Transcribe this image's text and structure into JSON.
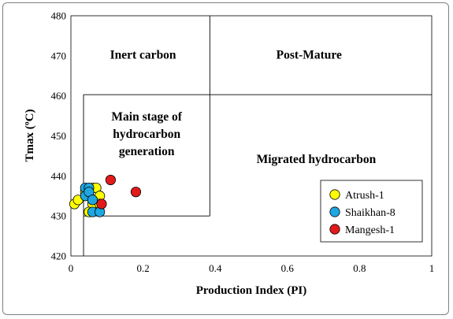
{
  "chart_data": {
    "type": "scatter",
    "title": "",
    "xlabel": "Production Index (PI)",
    "ylabel": "Tmax (ºC)",
    "xlim": [
      0,
      1
    ],
    "ylim": [
      420,
      480
    ],
    "x_ticks": [
      "0",
      "0.2",
      "0.4",
      "0.6",
      "0.8",
      "1"
    ],
    "y_ticks": [
      "420",
      "430",
      "440",
      "450",
      "460",
      "470",
      "480"
    ],
    "grid": false,
    "legend_position": "bottom-right",
    "regions": [
      {
        "label": "Inert carbon",
        "x": 0.2,
        "y": 470.3
      },
      {
        "label": "Post-Mature",
        "x": 0.66,
        "y": 470.3
      },
      {
        "label": "Main stage of hydrocarbon generation",
        "lines": [
          "Main stage of",
          "hydrocarbon",
          "generation"
        ],
        "x": 0.21,
        "y": 450.5
      },
      {
        "label": "Migrated hydrocarbon",
        "x": 0.68,
        "y": 444.2
      }
    ],
    "boundaries": [
      {
        "x1": 0.385,
        "y1": 480,
        "x2": 0.385,
        "y2": 430
      },
      {
        "x1": 0.035,
        "y1": 460.3,
        "x2": 1.0,
        "y2": 460.3
      },
      {
        "x1": 0.035,
        "y1": 460.3,
        "x2": 0.035,
        "y2": 420
      },
      {
        "x1": 0.035,
        "y1": 430,
        "x2": 0.385,
        "y2": 430
      }
    ],
    "series": [
      {
        "name": "Atrush-1",
        "color": "#ffff00",
        "points": [
          [
            0.01,
            433
          ],
          [
            0.02,
            434
          ],
          [
            0.04,
            436
          ],
          [
            0.05,
            435
          ],
          [
            0.06,
            437
          ],
          [
            0.07,
            437
          ],
          [
            0.08,
            435
          ],
          [
            0.06,
            433
          ],
          [
            0.08,
            433
          ],
          [
            0.05,
            431
          ]
        ]
      },
      {
        "name": "Shaikhan-8",
        "color": "#1ea7e1",
        "points": [
          [
            0.04,
            437
          ],
          [
            0.05,
            437
          ],
          [
            0.04,
            435
          ],
          [
            0.05,
            436
          ],
          [
            0.06,
            434
          ],
          [
            0.06,
            431
          ],
          [
            0.08,
            431
          ]
        ]
      },
      {
        "name": "Mangesh-1",
        "color": "#e31a1a",
        "points": [
          [
            0.11,
            439
          ],
          [
            0.18,
            436
          ],
          [
            0.085,
            433
          ]
        ]
      }
    ]
  }
}
